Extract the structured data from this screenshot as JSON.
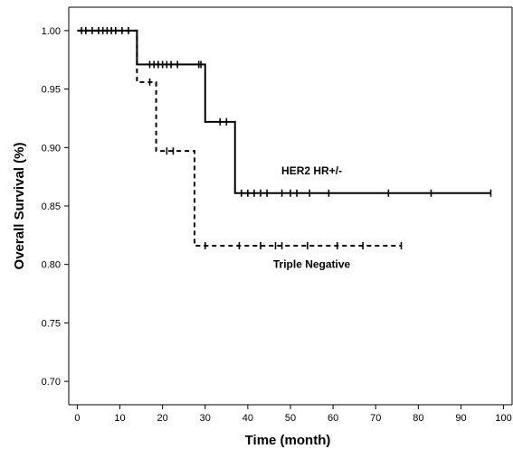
{
  "chart_data": {
    "type": "line",
    "chart_kind": "kaplan-meier survival curve",
    "xlabel": "Time (month)",
    "ylabel": "Overall Survival (%)",
    "xlim": [
      -2,
      102
    ],
    "ylim": [
      0.68,
      1.02
    ],
    "x_ticks": [
      0,
      10,
      20,
      30,
      40,
      50,
      60,
      70,
      80,
      90,
      100
    ],
    "y_ticks": [
      0.7,
      0.75,
      0.8,
      0.85,
      0.9,
      0.95,
      1.0
    ],
    "y_tick_labels": [
      "0.70",
      "0.75",
      "0.80",
      "0.85",
      "0.90",
      "0.95",
      "1.00"
    ],
    "grid": false,
    "series": [
      {
        "name": "HER2 HR+/-",
        "line_style": "solid",
        "color": "#000000",
        "steps": [
          {
            "x": 0,
            "y": 1.0
          },
          {
            "x": 14,
            "y": 0.971
          },
          {
            "x": 30,
            "y": 0.922
          },
          {
            "x": 37,
            "y": 0.861
          }
        ],
        "end_x": 97,
        "censored": [
          {
            "x": 1,
            "y": 1.0
          },
          {
            "x": 2,
            "y": 1.0
          },
          {
            "x": 3.5,
            "y": 1.0
          },
          {
            "x": 5,
            "y": 1.0
          },
          {
            "x": 6,
            "y": 1.0
          },
          {
            "x": 7,
            "y": 1.0
          },
          {
            "x": 8,
            "y": 1.0
          },
          {
            "x": 9,
            "y": 1.0
          },
          {
            "x": 10.5,
            "y": 1.0
          },
          {
            "x": 12,
            "y": 1.0
          },
          {
            "x": 17,
            "y": 0.971
          },
          {
            "x": 18,
            "y": 0.971
          },
          {
            "x": 19,
            "y": 0.971
          },
          {
            "x": 20,
            "y": 0.971
          },
          {
            "x": 21,
            "y": 0.971
          },
          {
            "x": 22,
            "y": 0.971
          },
          {
            "x": 23.5,
            "y": 0.971
          },
          {
            "x": 28.5,
            "y": 0.971
          },
          {
            "x": 29,
            "y": 0.971
          },
          {
            "x": 33.5,
            "y": 0.922
          },
          {
            "x": 35,
            "y": 0.922
          },
          {
            "x": 38.5,
            "y": 0.861
          },
          {
            "x": 40,
            "y": 0.861
          },
          {
            "x": 41.5,
            "y": 0.861
          },
          {
            "x": 43,
            "y": 0.861
          },
          {
            "x": 44.5,
            "y": 0.861
          },
          {
            "x": 48,
            "y": 0.861
          },
          {
            "x": 50,
            "y": 0.861
          },
          {
            "x": 51.5,
            "y": 0.861
          },
          {
            "x": 54.5,
            "y": 0.861
          },
          {
            "x": 59,
            "y": 0.861
          },
          {
            "x": 73,
            "y": 0.861
          },
          {
            "x": 83,
            "y": 0.861
          },
          {
            "x": 97,
            "y": 0.861
          }
        ]
      },
      {
        "name": "Triple Negative",
        "line_style": "dashed",
        "color": "#000000",
        "steps": [
          {
            "x": 0,
            "y": 1.0
          },
          {
            "x": 14,
            "y": 0.956
          },
          {
            "x": 18.5,
            "y": 0.897
          },
          {
            "x": 27.5,
            "y": 0.816
          }
        ],
        "end_x": 76,
        "censored": [
          {
            "x": 17,
            "y": 0.956
          },
          {
            "x": 21,
            "y": 0.897
          },
          {
            "x": 22.5,
            "y": 0.897
          },
          {
            "x": 30,
            "y": 0.816
          },
          {
            "x": 38,
            "y": 0.816
          },
          {
            "x": 43,
            "y": 0.816
          },
          {
            "x": 46.5,
            "y": 0.816
          },
          {
            "x": 48,
            "y": 0.816
          },
          {
            "x": 54,
            "y": 0.816
          },
          {
            "x": 61,
            "y": 0.816
          },
          {
            "x": 67,
            "y": 0.816
          },
          {
            "x": 76,
            "y": 0.816
          }
        ]
      }
    ],
    "annotations": [
      {
        "text": "HER2 HR+/-",
        "x": 55,
        "y": 0.877,
        "anchor": "middle"
      },
      {
        "text": "Triple Negative",
        "x": 55,
        "y": 0.797,
        "anchor": "middle"
      }
    ]
  }
}
